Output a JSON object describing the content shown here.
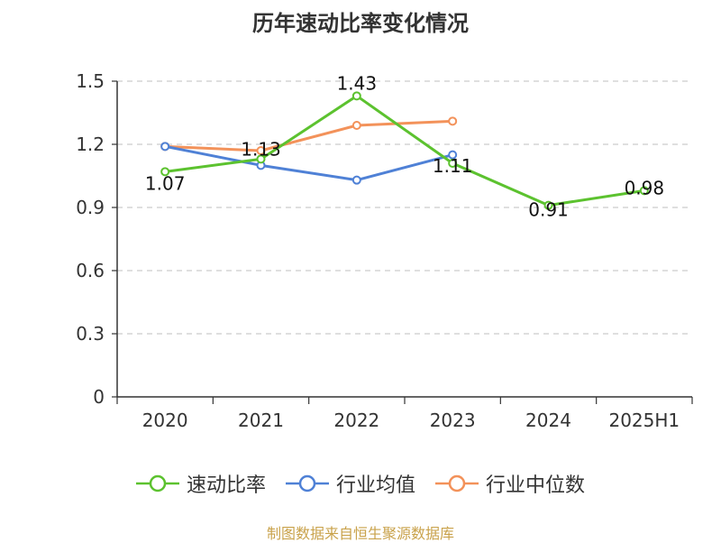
{
  "title": "历年速动比率变化情况",
  "footer": "制图数据来自恒生聚源数据库",
  "colors": {
    "axis": "#333333",
    "grid": "#cccccc",
    "text": "#333333"
  },
  "chart_data": {
    "type": "line",
    "categories": [
      "2020",
      "2021",
      "2022",
      "2023",
      "2024",
      "2025H1"
    ],
    "ylim": [
      0,
      1.5
    ],
    "yticks": [
      0,
      0.3,
      0.6,
      0.9,
      1.2,
      1.5
    ],
    "ytick_labels": [
      "0",
      "0.3",
      "0.6",
      "0.9",
      "1.2",
      "1.5"
    ],
    "grid": true,
    "legend_position": "bottom-center",
    "series": [
      {
        "name": "速动比率",
        "color": "#5cc22f",
        "values": [
          1.07,
          1.13,
          1.43,
          1.11,
          0.91,
          0.98
        ],
        "labels": [
          "1.07",
          "1.13",
          "1.43",
          "1.11",
          "0.91",
          "0.98"
        ]
      },
      {
        "name": "行业均值",
        "color": "#4f81d6",
        "values": [
          1.19,
          1.1,
          1.03,
          1.15,
          null,
          null
        ]
      },
      {
        "name": "行业中位数",
        "color": "#f3925a",
        "values": [
          1.19,
          1.17,
          1.29,
          1.31,
          null,
          null
        ]
      }
    ]
  }
}
